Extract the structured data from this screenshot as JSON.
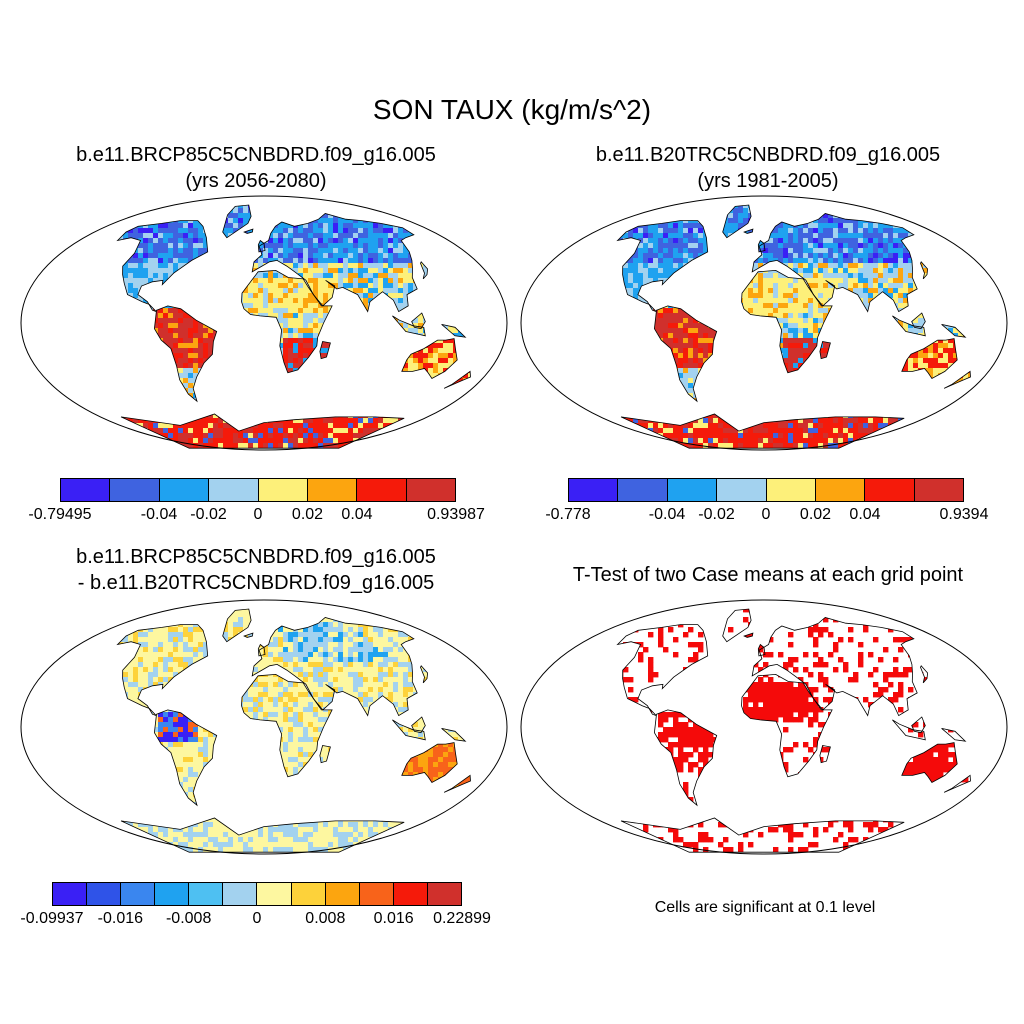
{
  "title": "SON TAUX (kg/m/s^2)",
  "panels": [
    {
      "line1": "b.e11.BRCP85C5CNBDRD.f09_g16.005",
      "line2": "(yrs 2056-2080)",
      "colorbar": {
        "colors": [
          "#3a20f5",
          "#3f63e0",
          "#1fa2f0",
          "#a3d2ef",
          "#fdf07a",
          "#fca50f",
          "#f51a0a",
          "#d0302c"
        ],
        "labels": [
          "-0.79495",
          "-0.04",
          "-0.02",
          "0",
          "0.02",
          "0.04",
          "0.93987"
        ]
      }
    },
    {
      "line1": "b.e11.B20TRC5CNBDRD.f09_g16.005",
      "line2": "(yrs 1981-2005)",
      "colorbar": {
        "colors": [
          "#3a20f5",
          "#3f63e0",
          "#1fa2f0",
          "#a3d2ef",
          "#fdf07a",
          "#fca50f",
          "#f51a0a",
          "#d0302c"
        ],
        "labels": [
          "-0.778",
          "-0.04",
          "-0.02",
          "0",
          "0.02",
          "0.04",
          "0.9394"
        ]
      }
    },
    {
      "line1": "b.e11.BRCP85C5CNBDRD.f09_g16.005",
      "line2": "- b.e11.B20TRC5CNBDRD.f09_g16.005",
      "colorbar": {
        "colors": [
          "#3a20f5",
          "#2f53e8",
          "#3a86ef",
          "#1fa2f0",
          "#4ec0f2",
          "#a3d2ef",
          "#fdf7a0",
          "#fdd23a",
          "#fca50f",
          "#f8631a",
          "#f51a0a",
          "#d0302c"
        ],
        "labels": [
          "-0.09937",
          "-0.016",
          "-0.008",
          "0",
          "0.008",
          "0.016",
          "0.22899"
        ]
      }
    },
    {
      "line1": "T-Test of two Case means at each grid point",
      "line2": "",
      "note": "Cells are significant at 0.1 level",
      "sig_color": "#f50a0a"
    }
  ]
}
